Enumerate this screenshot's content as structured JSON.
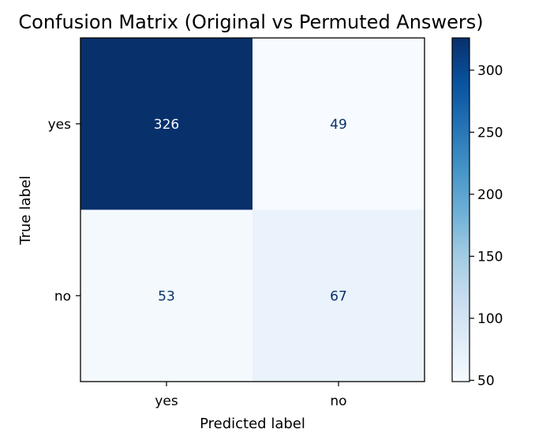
{
  "chart_data": {
    "type": "heatmap",
    "title": "Confusion Matrix (Original vs Permuted Answers)",
    "xlabel": "Predicted label",
    "ylabel": "True label",
    "x_categories": [
      "yes",
      "no"
    ],
    "y_categories": [
      "yes",
      "no"
    ],
    "values": [
      [
        326,
        49
      ],
      [
        53,
        67
      ]
    ],
    "colormap": "Blues",
    "colorbar": {
      "ticks": [
        50,
        100,
        150,
        200,
        250,
        300
      ],
      "range": [
        49,
        326
      ]
    },
    "colors": {
      "low": "#f7fbff",
      "high": "#08306b",
      "text_on_dark": "#f7fbff",
      "text_on_light": "#08306b"
    }
  }
}
